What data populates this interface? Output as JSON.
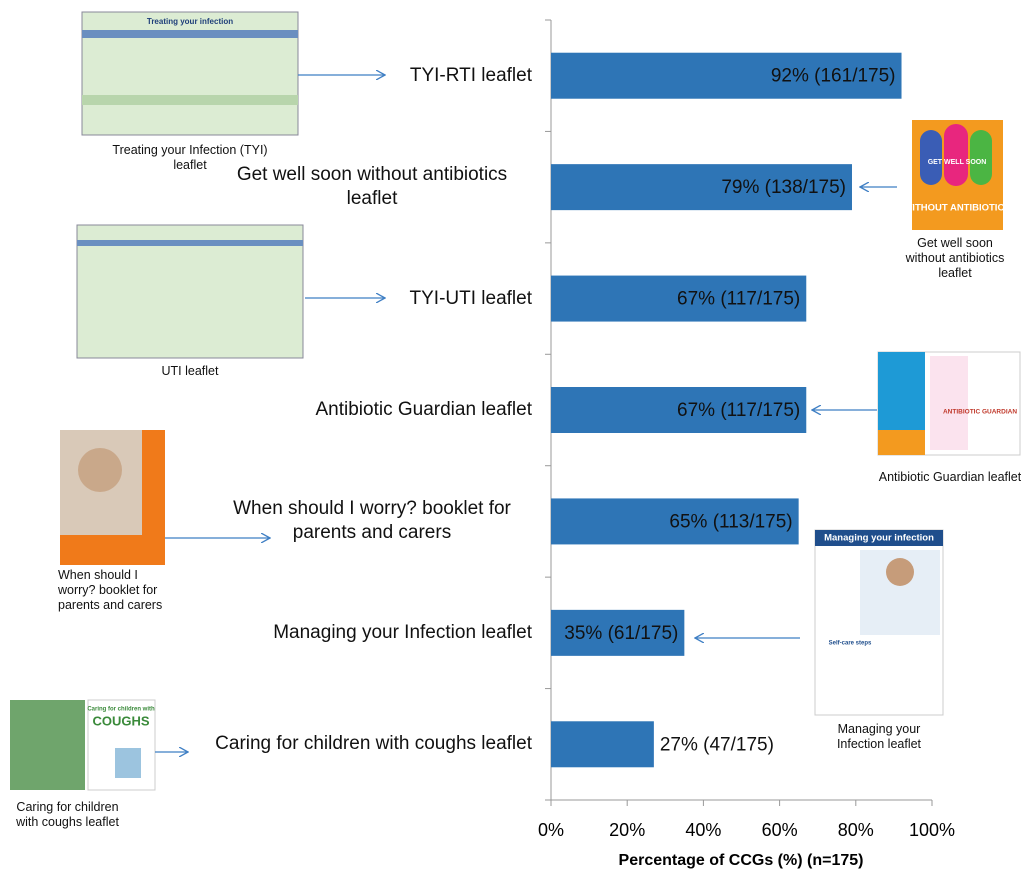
{
  "chart_data": {
    "type": "barh",
    "categories": [
      "TYI-RTI leaflet",
      "Get well soon without antibiotics leaflet",
      "TYI-UTI leaflet",
      "Antibiotic Guardian leaflet",
      "When should I worry? booklet for parents and carers",
      "Managing your Infection leaflet",
      "Caring for children with coughs leaflet"
    ],
    "values": [
      92,
      79,
      67,
      67,
      65,
      35,
      27
    ],
    "value_labels": [
      "92% (161/175)",
      "79% (138/175)",
      "67% (117/175)",
      "67% (117/175)",
      "65% (113/175)",
      "35% (61/175)",
      "27% (47/175)"
    ],
    "color": "#2e75b6",
    "xlim": [
      0,
      100
    ],
    "xticks": [
      {
        "value": 0,
        "label": "0%"
      },
      {
        "value": 20,
        "label": "20%"
      },
      {
        "value": 40,
        "label": "40%"
      },
      {
        "value": 60,
        "label": "60%"
      },
      {
        "value": 80,
        "label": "80%"
      },
      {
        "value": 100,
        "label": "100%"
      }
    ],
    "x_label": "Percentage of CCGs (%) (n=175)",
    "annotations": [
      "Treating your Infection (TYI) leaflet",
      "Get well soon without antibiotics leaflet",
      "UTI leaflet",
      "Antibiotic Guardian leaflet",
      "When should I worry? booklet for parents and carers",
      "Managing your Infection leaflet",
      "Caring for children with coughs leaflet"
    ],
    "image_texts": [
      "Treating your infection",
      "GET WELL SOON",
      "WITHOUT ANTIBIOTICS",
      "ANTIBIOTIC GUARDIAN",
      "Managing your infection",
      "Self-care steps",
      "Caring for children with",
      "COUGHS"
    ]
  }
}
